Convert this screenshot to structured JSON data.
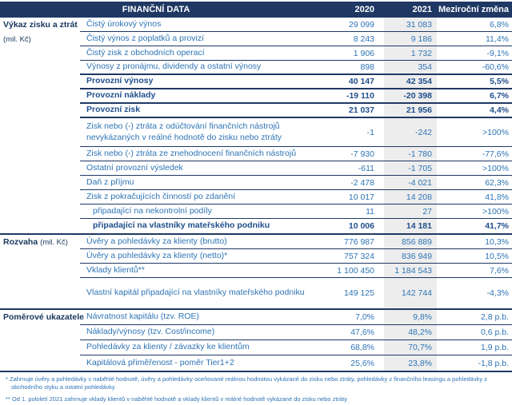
{
  "header": {
    "title": "FINANČNÍ DATA",
    "col_2020": "2020",
    "col_2021": "2021",
    "col_change": "Meziroční změna"
  },
  "colors": {
    "header_bg": "#1F3864",
    "text_blue": "#2E74B6",
    "bold_blue": "#1F4E8C",
    "col_2021_band": "#EDEDED"
  },
  "sections": [
    {
      "label": "Výkaz zisku a ztrát",
      "sublabel": "(mil. Kč)",
      "rows": [
        {
          "label": "Čistý úrokový výnos",
          "y2020": "29 099",
          "y2021": "31 083",
          "change": "6,8%"
        },
        {
          "label": "Čistý výnos z poplatků a provizí",
          "y2020": "8 243",
          "y2021": "9 186",
          "change": "11,4%"
        },
        {
          "label": "Čistý zisk z obchodních operací",
          "y2020": "1 906",
          "y2021": "1 732",
          "change": "-9,1%"
        },
        {
          "label": "Výnosy z pronájmu, dividendy a ostatní výnosy",
          "y2020": "898",
          "y2021": "354",
          "change": "-60,6%",
          "thick": true
        },
        {
          "label": "Provozní výnosy",
          "y2020": "40 147",
          "y2021": "42 354",
          "change": "5,5%",
          "bold": true,
          "thick": true
        },
        {
          "label": "Provozní náklady",
          "y2020": "-19 110",
          "y2021": "-20 398",
          "change": "6,7%",
          "bold": true,
          "thick": true
        },
        {
          "label": "Provozní zisk",
          "y2020": "21 037",
          "y2021": "21 956",
          "change": "4,4%",
          "bold": true,
          "thick": true
        },
        {
          "label": "Zisk nebo (-) ztráta z odúčtování finančních nástrojů nevykázaných v reálné hodnotě do zisku nebo ztráty",
          "y2020": "-1",
          "y2021": "-242",
          "change": ">100%",
          "tall": true
        },
        {
          "label": "Zisk nebo (-) ztráta ze znehodnocení finančních nástrojů",
          "y2020": "-7 930",
          "y2021": "-1 780",
          "change": "-77,6%"
        },
        {
          "label": "Ostatní provozní výsledek",
          "y2020": "-611",
          "y2021": "-1 705",
          "change": ">100%"
        },
        {
          "label": "Daň z příjmu",
          "y2020": "-2 478",
          "y2021": "-4 021",
          "change": "62,3%"
        },
        {
          "label": "Zisk z pokračujících činností po zdanění",
          "y2020": "10 017",
          "y2021": "14 208",
          "change": "41,8%"
        },
        {
          "label": "připadající na nekontrolní podíly",
          "y2020": "11",
          "y2021": "27",
          "change": ">100%",
          "indent": true
        },
        {
          "label": "připadající na vlastníky mateřského podniku",
          "y2020": "10 006",
          "y2021": "14 181",
          "change": "41,7%",
          "indent": true,
          "bold": true
        }
      ]
    },
    {
      "label": "Rozvaha",
      "sublabel": "(mil. Kč)",
      "inline_sub": true,
      "rows": [
        {
          "label": "Úvěry a pohledávky za klienty (brutto)",
          "y2020": "776 987",
          "y2021": "856 889",
          "change": "10,3%"
        },
        {
          "label": "Úvěry a pohledávky za klienty (netto)*",
          "y2020": "757 324",
          "y2021": "836 949",
          "change": "10,5%"
        },
        {
          "label": "Vklady klientů**",
          "y2020": "1 100 450",
          "y2021": "1 184 543",
          "change": "7,6%"
        },
        {
          "label": "Vlastní kapitál připadající na vlastníky mateřského podniku",
          "y2020": "149 125",
          "y2021": "142 744",
          "change": "-4,3%",
          "tall2": true
        }
      ]
    },
    {
      "label": "Poměrové ukazatele",
      "sublabel": "",
      "inline_sub": true,
      "rows": [
        {
          "label": "Návratnost kapitálu (tzv. ROE)",
          "y2020": "7,0%",
          "y2021": "9,8%",
          "change": "2,8 p.b."
        },
        {
          "label": "Náklady/výnosy (tzv. Cost/income)",
          "y2020": "47,6%",
          "y2021": "48,2%",
          "change": "0,6 p.b."
        },
        {
          "label": "Pohledávky za klienty / závazky ke klientům",
          "y2020": "68,8%",
          "y2021": "70,7%",
          "change": "1,9 p.b."
        },
        {
          "label": "Kapitálová přiměřenost - poměr Tier1+2",
          "y2020": "25,6%",
          "y2021": "23,8%",
          "change": "-1,8 p.b."
        }
      ]
    }
  ],
  "footnotes": [
    "* Zahrnuje úvěry a pohledávky v naběhlé hodnotě, úvěry a pohledávky oceňované reálnou hodnotou vykázané do zisku nebo ztráty, pohledávky z finančního leasingu a pohledávky z obchodního styku a ostatní pohledávky",
    "** Od 1. pololetí 2021 zahrnuje vklady klientů v naběhlé hodnotě a vklady klientů v reálné hodnotě vykázané do zisku nebo ztráty"
  ]
}
